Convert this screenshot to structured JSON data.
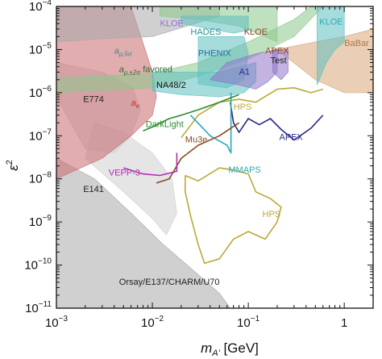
{
  "chart_data": {
    "type": "area",
    "xlabel": "m",
    "xlabel_sub": "A'",
    "xlabel_unit": "[GeV]",
    "ylabel": "ε",
    "ylabel_sup": "2",
    "x_scale": "log",
    "y_scale": "log",
    "xlim": [
      0.001,
      2
    ],
    "ylim": [
      1e-11,
      0.0001
    ],
    "x_ticks": [
      {
        "value": 0.001,
        "base": "10",
        "exp": "−3"
      },
      {
        "value": 0.01,
        "base": "10",
        "exp": "−2"
      },
      {
        "value": 0.1,
        "base": "10",
        "exp": "−1"
      },
      {
        "value": 1,
        "base": "1",
        "exp": ""
      }
    ],
    "y_ticks": [
      {
        "value": 1e-11,
        "base": "10",
        "exp": "−11"
      },
      {
        "value": 1e-10,
        "base": "10",
        "exp": "−10"
      },
      {
        "value": 1e-09,
        "base": "10",
        "exp": "−9"
      },
      {
        "value": 1e-08,
        "base": "10",
        "exp": "−8"
      },
      {
        "value": 1e-07,
        "base": "10",
        "exp": "−7"
      },
      {
        "value": 1e-06,
        "base": "10",
        "exp": "−6"
      },
      {
        "value": 1e-05,
        "base": "10",
        "exp": "−5"
      },
      {
        "value": 0.0001,
        "base": "10",
        "exp": "−4"
      }
    ],
    "colors": {
      "gray": "#a9a9ab",
      "gray_light": "#cfcfd1",
      "red": "#c96a6e",
      "green": "#8cc88a",
      "green_line": "#2e8b2e",
      "teal": "#5fc0c0",
      "cyan": "#2ba8b8",
      "purple": "#8f74c8",
      "orange": "#d9a77a",
      "olive": "#bba837",
      "brown": "#8a4a22",
      "magenta": "#b030b0",
      "indigo": "#2a2a8a"
    },
    "series": [
      {
        "name": "Orsay/E137/CHARM/U70",
        "kind": "filled",
        "color": "gray",
        "points": [
          [
            0.001,
            1e-11
          ],
          [
            0.001,
            3e-08
          ],
          [
            0.0025,
            1e-08
          ],
          [
            0.006,
            1.6e-09
          ],
          [
            0.013,
            3e-10
          ],
          [
            0.03,
            6e-11
          ],
          [
            0.05,
            2.2e-11
          ],
          [
            0.065,
            1e-11
          ]
        ]
      },
      {
        "name": "E141",
        "kind": "filled",
        "color": "gray_light",
        "points": [
          [
            0.002,
            3e-08
          ],
          [
            0.005,
            5e-09
          ],
          [
            0.01,
            1.2e-09
          ],
          [
            0.014,
            5e-10
          ],
          [
            0.018,
            1.6e-09
          ],
          [
            0.016,
            1e-08
          ],
          [
            0.01,
            4e-08
          ],
          [
            0.005,
            1.2e-07
          ],
          [
            0.0025,
            2e-07
          ]
        ]
      },
      {
        "name": "E774",
        "kind": "filled",
        "color": "gray_light",
        "points": [
          [
            0.001,
            8e-07
          ],
          [
            0.001,
            5e-06
          ],
          [
            0.003,
            3e-06
          ],
          [
            0.0063,
            1.3e-06
          ],
          [
            0.0075,
            4e-07
          ],
          [
            0.006,
            1e-07
          ],
          [
            0.004,
            4e-08
          ],
          [
            0.002,
            5e-08
          ]
        ]
      },
      {
        "name": "a",
        "sub": "e",
        "kind": "filled",
        "color": "red",
        "points": [
          [
            0.001,
            1e-08
          ],
          [
            0.001,
            0.0001
          ],
          [
            0.006,
            0.0001
          ],
          [
            0.01,
            3e-06
          ],
          [
            0.011,
            8e-07
          ],
          [
            0.01,
            3e-07
          ],
          [
            0.006,
            1e-07
          ],
          [
            0.003,
            3e-08
          ]
        ]
      },
      {
        "name": "a",
        "sub": "μ,5σ",
        "kind": "filled",
        "color": "gray",
        "points": [
          [
            0.001,
            1.5e-05
          ],
          [
            0.001,
            0.0001
          ],
          [
            0.05,
            0.0001
          ],
          [
            0.05,
            6e-05
          ],
          [
            0.01,
            2e-05
          ],
          [
            0.003,
            1.8e-05
          ]
        ]
      },
      {
        "name": "a",
        "sub": "μ,±2σ",
        "suffix": "favored",
        "kind": "filled",
        "color": "green",
        "points": [
          [
            0.001,
            2.2e-06
          ],
          [
            0.01,
            2.8e-06
          ],
          [
            0.03,
            5e-06
          ],
          [
            0.1,
            1.5e-05
          ],
          [
            0.3,
            5e-05
          ],
          [
            0.45,
            0.0001
          ],
          [
            0.6,
            0.0001
          ],
          [
            0.3,
            2e-05
          ],
          [
            0.1,
            6e-06
          ],
          [
            0.03,
            2.4e-06
          ],
          [
            0.01,
            1.3e-06
          ],
          [
            0.001,
            1e-06
          ]
        ]
      },
      {
        "name": "BaBar",
        "kind": "filled",
        "color": "orange",
        "points": [
          [
            0.2,
            1e-05
          ],
          [
            0.5,
            2e-06
          ],
          [
            1,
            1e-06
          ],
          [
            2,
            1e-06
          ],
          [
            2,
            1e-05
          ],
          [
            2,
            3e-05
          ],
          [
            1,
            2e-05
          ],
          [
            0.5,
            1.5e-05
          ],
          [
            0.3,
            1.2e-05
          ]
        ]
      },
      {
        "name": "KLOE",
        "kind": "filled",
        "color": "green",
        "points": [
          [
            0.012,
            6e-05
          ],
          [
            0.03,
            5e-05
          ],
          [
            0.08,
            3.5e-05
          ],
          [
            0.15,
            2e-05
          ],
          [
            0.2,
            1.5e-05
          ],
          [
            0.2,
            0.0001
          ],
          [
            0.012,
            0.0001
          ]
        ]
      },
      {
        "name": "KLOE",
        "kind": "filled",
        "color": "teal",
        "points": [
          [
            0.52,
            1.5e-06
          ],
          [
            0.65,
            5e-06
          ],
          [
            0.8,
            1e-05
          ],
          [
            1,
            1.5e-05
          ],
          [
            1,
            0.0001
          ],
          [
            0.52,
            0.0001
          ]
        ]
      },
      {
        "name": "HADES",
        "kind": "filled",
        "color": "teal",
        "points": [
          [
            0.02,
            4e-05
          ],
          [
            0.04,
            3e-05
          ],
          [
            0.07,
            2.4e-05
          ],
          [
            0.1,
            2.8e-05
          ],
          [
            0.1,
            6e-05
          ],
          [
            0.02,
            6e-05
          ]
        ]
      },
      {
        "name": "PHENIX",
        "kind": "filled",
        "color": "teal",
        "points": [
          [
            0.03,
            1.6e-06
          ],
          [
            0.06,
            1.3e-06
          ],
          [
            0.09,
            2e-06
          ],
          [
            0.1,
            8e-06
          ],
          [
            0.09,
            2e-05
          ],
          [
            0.03,
            2e-05
          ]
        ]
      },
      {
        "name": "NA48/2",
        "kind": "filled",
        "color": "teal",
        "points": [
          [
            0.01,
            1.1e-06
          ],
          [
            0.02,
            9e-07
          ],
          [
            0.05,
            8e-07
          ],
          [
            0.09,
            1e-06
          ],
          [
            0.12,
            1.8e-06
          ],
          [
            0.12,
            5e-06
          ],
          [
            0.05,
            3e-06
          ],
          [
            0.01,
            3e-06
          ]
        ]
      },
      {
        "name": "A1",
        "kind": "filled",
        "color": "purple",
        "points": [
          [
            0.04,
            2e-06
          ],
          [
            0.08,
            1.5e-06
          ],
          [
            0.12,
            1.2e-06
          ],
          [
            0.16,
            1.8e-06
          ],
          [
            0.2,
            3e-06
          ],
          [
            0.2,
            1e-05
          ],
          [
            0.12,
            8e-06
          ],
          [
            0.06,
            5e-06
          ]
        ]
      },
      {
        "name": "APEX",
        "name2": "Test",
        "kind": "filled",
        "color": "purple",
        "points": [
          [
            0.18,
            3e-06
          ],
          [
            0.22,
            2e-06
          ],
          [
            0.26,
            3e-06
          ],
          [
            0.26,
            1e-05
          ],
          [
            0.18,
            1e-05
          ]
        ]
      },
      {
        "name": "HPS",
        "kind": "line",
        "color": "olive",
        "label_anchor": [
          0.07,
          4e-07
        ],
        "points": [
          [
            0.02,
            9e-08
          ],
          [
            0.03,
            3e-07
          ],
          [
            0.05,
            6e-07
          ],
          [
            0.08,
            7e-07
          ],
          [
            0.12,
            6e-07
          ],
          [
            0.2,
            1.2e-06
          ],
          [
            0.3,
            1.3e-06
          ],
          [
            0.45,
            1e-06
          ],
          [
            0.6,
            1.2e-06
          ]
        ]
      },
      {
        "name": "HPS",
        "kind": "line",
        "color": "olive",
        "label_anchor": [
          0.14,
          1.3e-09
        ],
        "points": [
          [
            0.022,
            1.2e-08
          ],
          [
            0.03,
            9e-09
          ],
          [
            0.05,
            1.8e-08
          ],
          [
            0.07,
            1.6e-08
          ],
          [
            0.1,
            1.3e-08
          ],
          [
            0.12,
            5e-09
          ],
          [
            0.17,
            3.5e-09
          ],
          [
            0.22,
            2.2e-09
          ],
          [
            0.2,
            1e-09
          ],
          [
            0.15,
            4e-10
          ],
          [
            0.1,
            6e-10
          ],
          [
            0.07,
            4e-10
          ],
          [
            0.05,
            1.4e-10
          ],
          [
            0.035,
            1.1e-10
          ],
          [
            0.03,
            3e-10
          ],
          [
            0.025,
            1.4e-09
          ],
          [
            0.022,
            5e-09
          ],
          [
            0.022,
            1.2e-08
          ]
        ]
      },
      {
        "name": "APEX",
        "kind": "line",
        "color": "indigo",
        "label_anchor": [
          0.21,
          8e-08
        ],
        "points": [
          [
            0.065,
            6e-07
          ],
          [
            0.07,
            2e-07
          ],
          [
            0.08,
            1.2e-07
          ],
          [
            0.1,
            2.5e-07
          ],
          [
            0.13,
            1.8e-07
          ],
          [
            0.17,
            2.5e-07
          ],
          [
            0.22,
            1.4e-07
          ],
          [
            0.3,
            8e-08
          ],
          [
            0.45,
            1.5e-07
          ],
          [
            0.6,
            3e-07
          ]
        ]
      },
      {
        "name": "MMAPS",
        "kind": "line",
        "color": "cyan",
        "label_anchor": [
          0.062,
          1.4e-08
        ],
        "points": [
          [
            0.025,
            3e-07
          ],
          [
            0.04,
            1e-07
          ],
          [
            0.06,
            6e-08
          ],
          [
            0.066,
            4e-08
          ],
          [
            0.066,
            1e-06
          ]
        ]
      },
      {
        "name": "Mu3e",
        "kind": "line",
        "color": "brown",
        "label_anchor": [
          0.022,
          7e-08
        ],
        "points": [
          [
            0.011,
            8e-09
          ],
          [
            0.015,
            1e-08
          ],
          [
            0.02,
            3e-08
          ],
          [
            0.03,
            6e-08
          ],
          [
            0.05,
            1e-07
          ],
          [
            0.08,
            2e-07
          ]
        ]
      },
      {
        "name": "DarkLight",
        "kind": "line",
        "color": "green_line",
        "label_anchor": [
          0.0085,
          1.6e-07
        ],
        "points": [
          [
            0.008,
            1.3e-07
          ],
          [
            0.01,
            1.6e-07
          ],
          [
            0.015,
            2.5e-07
          ],
          [
            0.02,
            3e-07
          ],
          [
            0.03,
            4e-07
          ],
          [
            0.05,
            6e-07
          ],
          [
            0.08,
            9e-07
          ]
        ]
      },
      {
        "name": "VEPP-3",
        "kind": "line",
        "color": "magenta",
        "label_anchor": [
          0.0035,
          1.2e-08
        ],
        "points": [
          [
            0.005,
            1.8e-08
          ],
          [
            0.008,
            1.3e-08
          ],
          [
            0.012,
            1.2e-08
          ],
          [
            0.018,
            1.5e-08
          ],
          [
            0.018,
            4e-08
          ]
        ]
      }
    ],
    "labels": [
      {
        "text": "KLOE",
        "x": 0.012,
        "y": 3.5e-05,
        "color": "#8f74c8"
      },
      {
        "text": "HADES",
        "x": 0.025,
        "y": 2.2e-05,
        "color": "#2b8f8f"
      },
      {
        "text": "KLOE",
        "x": 0.09,
        "y": 2.2e-05,
        "color": "#8a4a22"
      },
      {
        "text": "KLOE",
        "x": 0.55,
        "y": 3.8e-05,
        "color": "#2ba8b8"
      },
      {
        "text": "BaBar",
        "x": 1.0,
        "y": 1.2e-05,
        "color": "#b07840"
      },
      {
        "text": "PHENIX",
        "x": 0.03,
        "y": 7e-06,
        "color": "#1f6fa0"
      },
      {
        "text": "APEX",
        "x": 0.15,
        "y": 8e-06,
        "color": "#8a4a22"
      },
      {
        "text": "Test",
        "x": 0.17,
        "y": 4.8e-06,
        "color": "#222222"
      },
      {
        "text": "A1",
        "x": 0.08,
        "y": 2.6e-06,
        "color": "#2a2a8a"
      },
      {
        "text": "NA48/2",
        "x": 0.011,
        "y": 1.3e-06,
        "color": "#111111"
      },
      {
        "text": "HPS",
        "x": 0.07,
        "y": 4e-07,
        "color": "#bba837"
      },
      {
        "text": "HPS",
        "x": 0.14,
        "y": 1.3e-09,
        "color": "#bba837"
      },
      {
        "text": "APEX",
        "x": 0.21,
        "y": 8e-08,
        "color": "#2a2a8a"
      },
      {
        "text": "MMAPS",
        "x": 0.062,
        "y": 1.4e-08,
        "color": "#2ba8b8"
      },
      {
        "text": "Mu3e",
        "x": 0.022,
        "y": 7e-08,
        "color": "#8a4a22"
      },
      {
        "text": "DarkLight",
        "x": 0.0085,
        "y": 1.6e-07,
        "color": "#2e8b2e"
      },
      {
        "text": "VEPP-3",
        "x": 0.0035,
        "y": 1.2e-08,
        "color": "#b030b0"
      },
      {
        "text": "E774",
        "x": 0.0019,
        "y": 6e-07,
        "color": "#222222"
      },
      {
        "text": "E141",
        "x": 0.0019,
        "y": 5e-09,
        "color": "#222222"
      },
      {
        "text": "Orsay/E137/CHARM/U70",
        "x": 0.0045,
        "y": 3.5e-11,
        "color": "#222222"
      }
    ],
    "math_labels": [
      {
        "base": "a",
        "sub": "μ,5σ",
        "x": 0.004,
        "y": 8e-06,
        "color": "#2b8f8f"
      },
      {
        "base": "a",
        "sub": "μ,±2σ",
        "suffix": "favored",
        "x": 0.0045,
        "y": 3e-06,
        "color": "#2e6b2e"
      },
      {
        "base": "a",
        "sub": "e",
        "x": 0.006,
        "y": 5e-07,
        "color": "#c0302e"
      }
    ]
  }
}
